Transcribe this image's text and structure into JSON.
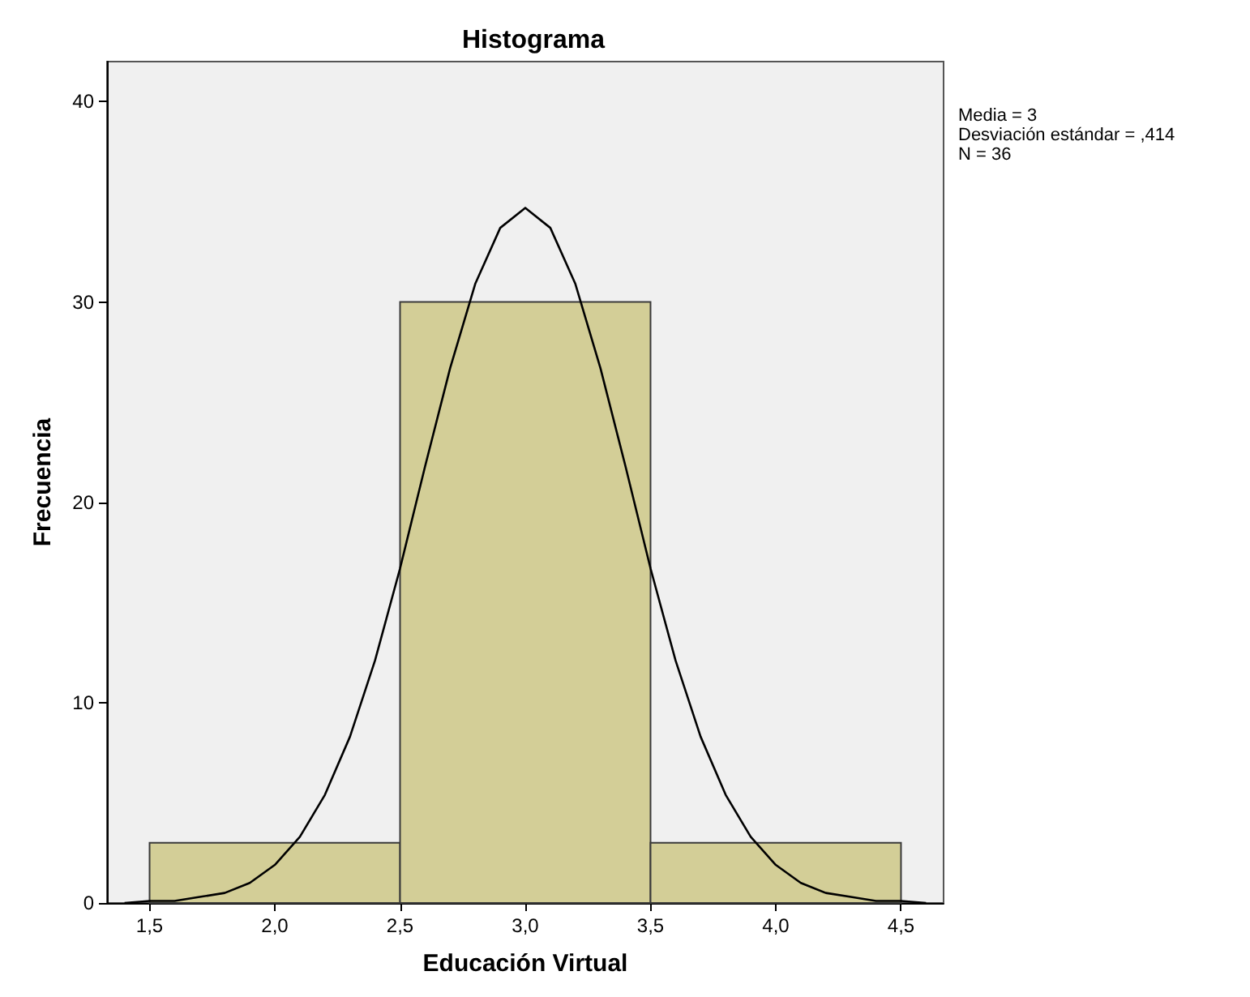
{
  "chart_data": {
    "type": "histogram",
    "title": "Histograma",
    "xlabel": "Educación Virtual",
    "ylabel": "Frecuencia",
    "annotations": [
      "Media = 3",
      "Desviación estándar = ,414",
      "N = 36"
    ],
    "bins": [
      1.5,
      2.5,
      3.5,
      4.5
    ],
    "series": [
      {
        "color": "#d3ce97",
        "values": [
          3,
          30,
          3
        ]
      },
      {
        "type": "line",
        "color": "#000000",
        "x": [
          1.4,
          1.5,
          1.6,
          1.7,
          1.8,
          1.9,
          2.0,
          2.1,
          2.2,
          2.3,
          2.4,
          2.5,
          2.6,
          2.7,
          2.8,
          2.9,
          3.0,
          3.1,
          3.2,
          3.3,
          3.4,
          3.5,
          3.6,
          3.7,
          3.8,
          3.9,
          4.0,
          4.1,
          4.2,
          4.3,
          4.4,
          4.5,
          4.6
        ],
        "values": [
          0,
          0.1,
          0.1,
          0.3,
          0.5,
          1.0,
          1.9,
          3.3,
          5.4,
          8.3,
          12.1,
          16.7,
          21.8,
          26.7,
          30.9,
          33.7,
          34.7,
          33.7,
          30.9,
          26.7,
          21.8,
          16.7,
          12.1,
          8.3,
          5.4,
          3.3,
          1.9,
          1.0,
          0.5,
          0.3,
          0.1,
          0.1,
          0
        ]
      }
    ],
    "xlim": [
      1.33,
      4.67
    ],
    "ylim": [
      0,
      42
    ],
    "xticks": [
      {
        "value": 1.5,
        "label": "1,5"
      },
      {
        "value": 2,
        "label": "2,0"
      },
      {
        "value": 2.5,
        "label": "2,5"
      },
      {
        "value": 3,
        "label": "3,0"
      },
      {
        "value": 3.5,
        "label": "3,5"
      },
      {
        "value": 4,
        "label": "4,0"
      },
      {
        "value": 4.5,
        "label": "4,5"
      }
    ],
    "yticks": [
      0,
      10,
      20,
      30,
      40
    ],
    "grid": false
  }
}
